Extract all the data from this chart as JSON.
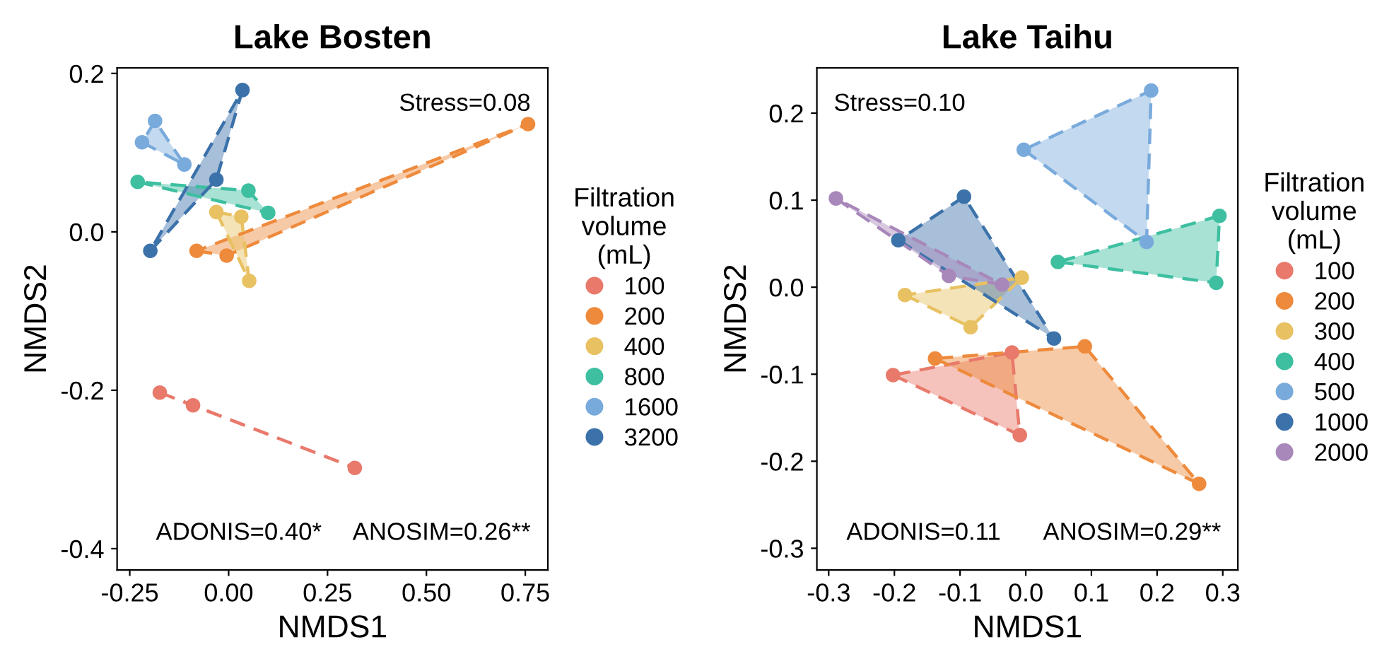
{
  "chart_data": [
    {
      "type": "scatter",
      "title": "Lake Bosten",
      "xlabel": "NMDS1",
      "ylabel": "NMDS2",
      "legend_title": "Filtration\nvolume\n(mL)",
      "legend": "right",
      "marker": "circle",
      "line_style": "dashed",
      "grid": false,
      "xlim": [
        -0.282,
        0.807
      ],
      "ylim": [
        -0.427,
        0.207
      ],
      "xticks": [
        {
          "value": -0.25,
          "label": "-0.25"
        },
        {
          "value": 0,
          "label": "0.00"
        },
        {
          "value": 0.25,
          "label": "0.25"
        },
        {
          "value": 0.5,
          "label": "0.50"
        },
        {
          "value": 0.75,
          "label": "0.75"
        }
      ],
      "yticks": [
        -0.4,
        -0.2,
        {
          "value": 0,
          "label": "0.0"
        },
        0.2
      ],
      "annotations": [
        "Stress=0.08",
        "ADONIS=0.40*",
        "ANOSIM=0.26**"
      ],
      "series": [
        {
          "name": "100",
          "color": "#e8796b",
          "x": [
            -0.174,
            -0.09,
            0.319
          ],
          "values": [
            -0.203,
            -0.219,
            -0.298
          ]
        },
        {
          "name": "200",
          "color": "#ee8a3c",
          "x": [
            -0.081,
            -0.005,
            0.757
          ],
          "values": [
            -0.024,
            -0.03,
            0.136
          ]
        },
        {
          "name": "400",
          "color": "#e8c162",
          "x": [
            -0.031,
            0.032,
            0.052
          ],
          "values": [
            0.025,
            0.019,
            -0.062
          ]
        },
        {
          "name": "800",
          "color": "#3dbfa0",
          "x": [
            -0.23,
            0.05,
            0.1
          ],
          "values": [
            0.063,
            0.052,
            0.024
          ]
        },
        {
          "name": "1600",
          "color": "#79aadc",
          "x": [
            -0.186,
            -0.219,
            -0.112
          ],
          "values": [
            0.14,
            0.113,
            0.085
          ]
        },
        {
          "name": "3200",
          "color": "#3c72aa",
          "x": [
            0.035,
            -0.031,
            -0.198
          ],
          "values": [
            0.179,
            0.066,
            -0.024
          ]
        }
      ]
    },
    {
      "type": "scatter",
      "title": "Lake Taihu",
      "xlabel": "NMDS1",
      "ylabel": "NMDS2",
      "legend_title": "Filtration\nvolume\n(mL)",
      "legend": "right",
      "marker": "circle",
      "line_style": "dashed",
      "grid": false,
      "xlim": [
        -0.318,
        0.323
      ],
      "ylim": [
        -0.325,
        0.252
      ],
      "xticks": [
        -0.3,
        -0.2,
        -0.1,
        {
          "value": 0,
          "label": "0.0"
        },
        0.1,
        0.2,
        0.3
      ],
      "yticks": [
        -0.3,
        -0.2,
        -0.1,
        {
          "value": 0,
          "label": "0.0"
        },
        0.1,
        0.2
      ],
      "annotations": [
        "Stress=0.10",
        "ADONIS=0.11",
        "ANOSIM=0.29**"
      ],
      "series": [
        {
          "name": "100",
          "color": "#e8796b",
          "x": [
            -0.202,
            -0.021,
            -0.009
          ],
          "values": [
            -0.101,
            -0.075,
            -0.17
          ]
        },
        {
          "name": "200",
          "color": "#ee8a3c",
          "x": [
            -0.138,
            0.09,
            0.264
          ],
          "values": [
            -0.082,
            -0.068,
            -0.226
          ]
        },
        {
          "name": "300",
          "color": "#e8c162",
          "x": [
            -0.184,
            -0.006,
            -0.084
          ],
          "values": [
            -0.009,
            0.011,
            -0.046
          ]
        },
        {
          "name": "400",
          "color": "#3dbfa0",
          "x": [
            0.049,
            0.295,
            0.29
          ],
          "values": [
            0.029,
            0.082,
            0.005
          ]
        },
        {
          "name": "500",
          "color": "#79aadc",
          "x": [
            0.191,
            -0.003,
            0.184
          ],
          "values": [
            0.226,
            0.158,
            0.052
          ]
        },
        {
          "name": "1000",
          "color": "#3c72aa",
          "x": [
            -0.094,
            -0.194,
            0.043
          ],
          "values": [
            0.104,
            0.054,
            -0.059
          ]
        },
        {
          "name": "2000",
          "color": "#a888bb",
          "x": [
            -0.289,
            -0.117,
            -0.036
          ],
          "values": [
            0.102,
            0.013,
            0.003
          ]
        }
      ]
    }
  ]
}
